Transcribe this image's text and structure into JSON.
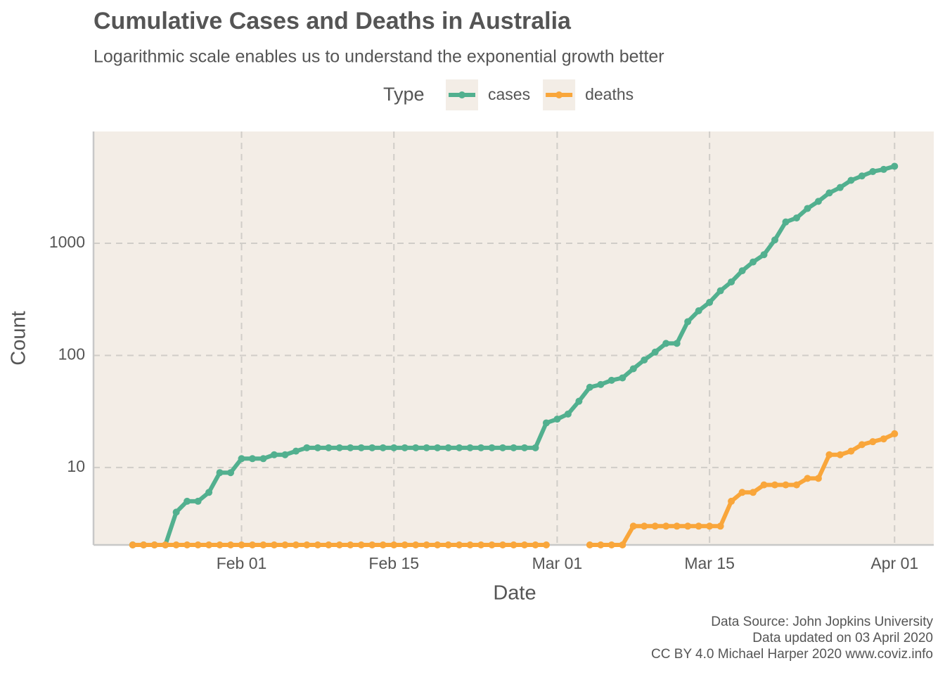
{
  "chart_data": {
    "type": "line",
    "title": "Cumulative Cases and Deaths in Australia",
    "subtitle": "Logarithmic scale enables us to understand the exponential growth better",
    "x_label": "Date",
    "y_label": "Count",
    "legend_title": "Type",
    "caption": [
      "Data Source: John Jopkins University",
      "Data updated on 03 April 2020",
      "CC BY 4.0 Michael Harper 2020 www.coviz.info"
    ],
    "log_y": true,
    "grid": true,
    "legend_position": "top",
    "x": [
      "Jan 22",
      "Jan 23",
      "Jan 24",
      "Jan 25",
      "Jan 26",
      "Jan 27",
      "Jan 28",
      "Jan 29",
      "Jan 30",
      "Jan 31",
      "Feb 01",
      "Feb 02",
      "Feb 03",
      "Feb 04",
      "Feb 05",
      "Feb 06",
      "Feb 07",
      "Feb 08",
      "Feb 09",
      "Feb 10",
      "Feb 11",
      "Feb 12",
      "Feb 13",
      "Feb 14",
      "Feb 15",
      "Feb 16",
      "Feb 17",
      "Feb 18",
      "Feb 19",
      "Feb 20",
      "Feb 21",
      "Feb 22",
      "Feb 23",
      "Feb 24",
      "Feb 25",
      "Feb 26",
      "Feb 27",
      "Feb 28",
      "Feb 29",
      "Mar 01",
      "Mar 02",
      "Mar 03",
      "Mar 04",
      "Mar 05",
      "Mar 06",
      "Mar 07",
      "Mar 08",
      "Mar 09",
      "Mar 10",
      "Mar 11",
      "Mar 12",
      "Mar 13",
      "Mar 14",
      "Mar 15",
      "Mar 16",
      "Mar 17",
      "Mar 18",
      "Mar 19",
      "Mar 20",
      "Mar 21",
      "Mar 22",
      "Mar 23",
      "Mar 24",
      "Mar 25",
      "Mar 26",
      "Mar 27",
      "Mar 28",
      "Mar 29",
      "Mar 30",
      "Mar 31",
      "Apr 01"
    ],
    "xticks": [
      "Feb 01",
      "Feb 15",
      "Mar 01",
      "Mar 15",
      "Apr 01"
    ],
    "ylim": [
      2.04,
      9930
    ],
    "yticks": [
      10,
      100,
      1000
    ],
    "series": [
      {
        "name": "cases",
        "color": "#52b08f",
        "values": [
          0,
          0,
          0,
          0,
          4,
          5,
          5,
          6,
          9,
          9,
          12,
          12,
          12,
          13,
          13,
          14,
          15,
          15,
          15,
          15,
          15,
          15,
          15,
          15,
          15,
          15,
          15,
          15,
          15,
          15,
          15,
          15,
          15,
          15,
          15,
          15,
          15,
          15,
          25,
          27,
          30,
          39,
          52,
          55,
          60,
          63,
          76,
          91,
          107,
          128,
          128,
          200,
          250,
          297,
          377,
          452,
          568,
          681,
          791,
          1071,
          1549,
          1682,
          2044,
          2364,
          2810,
          3143,
          3640,
          3984,
          4361,
          4559,
          4862
        ]
      },
      {
        "name": "deaths",
        "color": "#f9a63b",
        "values": [
          0,
          0,
          0,
          0,
          0,
          0,
          0,
          0,
          0,
          0,
          0,
          0,
          0,
          0,
          0,
          0,
          0,
          0,
          0,
          0,
          0,
          0,
          0,
          0,
          0,
          0,
          0,
          0,
          0,
          0,
          0,
          0,
          0,
          0,
          0,
          0,
          0,
          0,
          0,
          null,
          null,
          null,
          0,
          0,
          0,
          0,
          3,
          3,
          3,
          3,
          3,
          3,
          3,
          3,
          3,
          5,
          6,
          6,
          7,
          7,
          7,
          7,
          8,
          8,
          13,
          13,
          14,
          16,
          17,
          18,
          20
        ]
      }
    ]
  }
}
